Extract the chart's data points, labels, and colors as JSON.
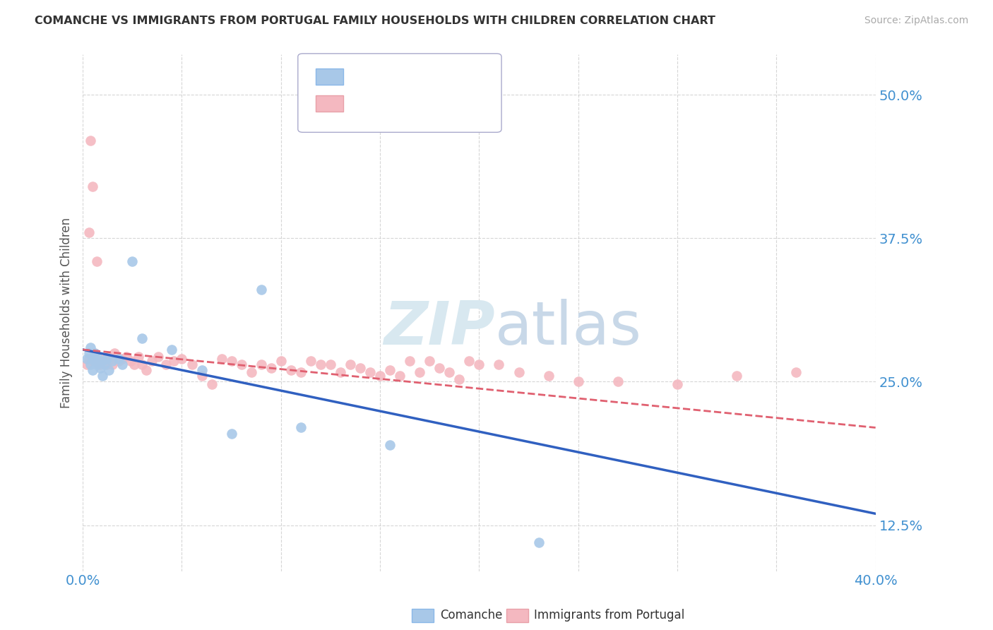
{
  "title": "COMANCHE VS IMMIGRANTS FROM PORTUGAL FAMILY HOUSEHOLDS WITH CHILDREN CORRELATION CHART",
  "source": "Source: ZipAtlas.com",
  "ylabel": "Family Households with Children",
  "xlim": [
    0.0,
    0.4
  ],
  "ylim": [
    0.085,
    0.535
  ],
  "yticks": [
    0.125,
    0.25,
    0.375,
    0.5
  ],
  "ytick_labels": [
    "12.5%",
    "25.0%",
    "37.5%",
    "50.0%"
  ],
  "xticks": [
    0.0,
    0.05,
    0.1,
    0.15,
    0.2,
    0.25,
    0.3,
    0.35,
    0.4
  ],
  "comanche_color": "#a8c8e8",
  "portugal_color": "#f4b8c0",
  "trend_comanche_color": "#3060c0",
  "trend_portugal_color": "#e06070",
  "background_color": "#ffffff",
  "comanche_x": [
    0.002,
    0.003,
    0.004,
    0.004,
    0.005,
    0.005,
    0.006,
    0.006,
    0.007,
    0.007,
    0.008,
    0.009,
    0.01,
    0.01,
    0.011,
    0.012,
    0.013,
    0.015,
    0.018,
    0.02,
    0.025,
    0.03,
    0.045,
    0.06,
    0.075,
    0.09,
    0.11,
    0.155,
    0.23
  ],
  "comanche_y": [
    0.27,
    0.275,
    0.265,
    0.28,
    0.27,
    0.26,
    0.275,
    0.268,
    0.272,
    0.265,
    0.268,
    0.262,
    0.268,
    0.255,
    0.265,
    0.27,
    0.26,
    0.268,
    0.27,
    0.265,
    0.355,
    0.288,
    0.278,
    0.26,
    0.205,
    0.33,
    0.21,
    0.195,
    0.11
  ],
  "portugal_x": [
    0.002,
    0.003,
    0.003,
    0.004,
    0.005,
    0.005,
    0.006,
    0.006,
    0.007,
    0.008,
    0.009,
    0.01,
    0.011,
    0.012,
    0.013,
    0.014,
    0.015,
    0.016,
    0.018,
    0.02,
    0.022,
    0.024,
    0.026,
    0.028,
    0.03,
    0.032,
    0.035,
    0.038,
    0.042,
    0.046,
    0.05,
    0.055,
    0.06,
    0.065,
    0.07,
    0.075,
    0.08,
    0.085,
    0.09,
    0.095,
    0.1,
    0.105,
    0.11,
    0.115,
    0.12,
    0.125,
    0.13,
    0.135,
    0.14,
    0.145,
    0.15,
    0.155,
    0.16,
    0.165,
    0.17,
    0.175,
    0.18,
    0.185,
    0.19,
    0.195,
    0.2,
    0.21,
    0.22,
    0.235,
    0.25,
    0.27,
    0.3,
    0.33,
    0.36
  ],
  "portugal_y": [
    0.265,
    0.27,
    0.38,
    0.46,
    0.27,
    0.42,
    0.268,
    0.275,
    0.355,
    0.265,
    0.265,
    0.268,
    0.27,
    0.265,
    0.272,
    0.27,
    0.265,
    0.275,
    0.268,
    0.27,
    0.272,
    0.268,
    0.265,
    0.272,
    0.265,
    0.26,
    0.268,
    0.272,
    0.265,
    0.268,
    0.27,
    0.265,
    0.255,
    0.248,
    0.27,
    0.268,
    0.265,
    0.258,
    0.265,
    0.262,
    0.268,
    0.26,
    0.258,
    0.268,
    0.265,
    0.265,
    0.258,
    0.265,
    0.262,
    0.258,
    0.255,
    0.26,
    0.255,
    0.268,
    0.258,
    0.268,
    0.262,
    0.258,
    0.252,
    0.268,
    0.265,
    0.265,
    0.258,
    0.255,
    0.25,
    0.25,
    0.248,
    0.255,
    0.258
  ],
  "trend_comanche_x0": 0.0,
  "trend_comanche_y0": 0.278,
  "trend_comanche_x1": 0.4,
  "trend_comanche_y1": 0.135,
  "trend_portugal_x0": 0.0,
  "trend_portugal_y0": 0.278,
  "trend_portugal_x1": 0.4,
  "trend_portugal_y1": 0.21
}
